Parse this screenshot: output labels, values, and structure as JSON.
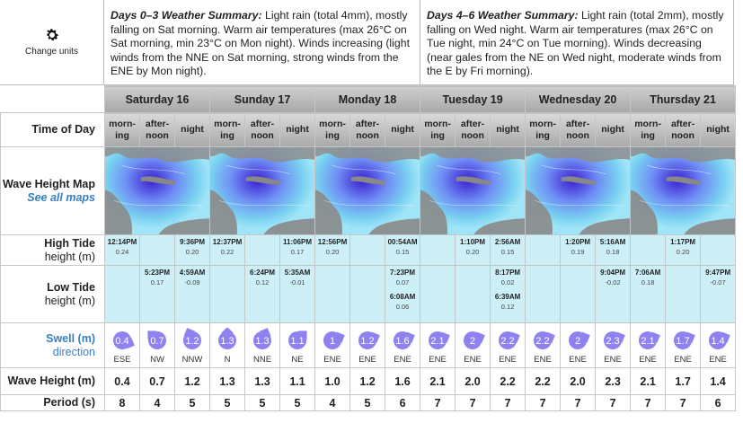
{
  "change_units": "Change units",
  "summaries": [
    {
      "title": "Days 0–3 Weather Summary:",
      "text": " Light rain (total 4mm), mostly falling on Sat morning. Warm air temperatures (max 26°C on Sat morning, min 23°C on Mon night). Winds increasing (light winds from the NNE on Sat morning, strong winds from the ENE by Mon night)."
    },
    {
      "title": "Days 4–6 Weather Summary:",
      "text": " Light rain (total 2mm), mostly falling on Wed night. Warm air temperatures (max 26°C on Tue night, min 24°C on Tue morning). Winds decreasing (near gales from the NE on Wed night, moderate winds from the E by Fri morning)."
    }
  ],
  "labels": {
    "time_of_day": "Time of Day",
    "wave_map": "Wave Height Map",
    "see_all_maps": "See all maps",
    "high_tide": "High Tide",
    "low_tide": "Low Tide",
    "height_m": "height (m)",
    "swell": "Swell (m)",
    "direction": "direction",
    "wave_height": "Wave Height (m)",
    "period": "Period (s)"
  },
  "days": [
    "Saturday 16",
    "Sunday 17",
    "Monday 18",
    "Tuesday 19",
    "Wednesday 20",
    "Thursday 21"
  ],
  "periods_of_day": [
    "morn- ing",
    "after- noon",
    "night"
  ],
  "high_tides": [
    [
      {
        "t": "12:14PM",
        "h": "0.24"
      }
    ],
    [],
    [
      {
        "t": "9:36PM",
        "h": "0.20"
      }
    ],
    [
      {
        "t": "12:37PM",
        "h": "0.22"
      }
    ],
    [],
    [
      {
        "t": "11:06PM",
        "h": "0.17"
      }
    ],
    [
      {
        "t": "12:56PM",
        "h": "0.20"
      }
    ],
    [],
    [
      {
        "t": "00:54AM",
        "h": "0.15"
      }
    ],
    [],
    [
      {
        "t": "1:10PM",
        "h": "0.20"
      }
    ],
    [
      {
        "t": "2:56AM",
        "h": "0.15"
      }
    ],
    [],
    [
      {
        "t": "1:20PM",
        "h": "0.19"
      }
    ],
    [
      {
        "t": "5:16AM",
        "h": "0.18"
      }
    ],
    [],
    [
      {
        "t": "1:17PM",
        "h": "0.20"
      }
    ],
    []
  ],
  "low_tides": [
    [],
    [
      {
        "t": "5:23PM",
        "h": "0.17"
      }
    ],
    [
      {
        "t": "4:59AM",
        "h": "-0.09"
      }
    ],
    [],
    [
      {
        "t": "6:24PM",
        "h": "0.12"
      }
    ],
    [
      {
        "t": "5:35AM",
        "h": "-0.01"
      }
    ],
    [],
    [],
    [
      {
        "t": "7:23PM",
        "h": "0.07"
      },
      {
        "t": "6:08AM",
        "h": "0.06"
      }
    ],
    [],
    [],
    [
      {
        "t": "8:17PM",
        "h": "0.02"
      },
      {
        "t": "6:39AM",
        "h": "0.12"
      }
    ],
    [],
    [],
    [
      {
        "t": "9:04PM",
        "h": "-0.02"
      }
    ],
    [
      {
        "t": "7:06AM",
        "h": "0.18"
      }
    ],
    [],
    [
      {
        "t": "9:47PM",
        "h": "-0.07"
      }
    ]
  ],
  "swell": [
    {
      "v": "0.4",
      "d": "ESE"
    },
    {
      "v": "0.7",
      "d": "NW"
    },
    {
      "v": "1.2",
      "d": "NNW"
    },
    {
      "v": "1.3",
      "d": "N"
    },
    {
      "v": "1.3",
      "d": "NNE"
    },
    {
      "v": "1.1",
      "d": "NE"
    },
    {
      "v": "1",
      "d": "ENE"
    },
    {
      "v": "1.2",
      "d": "ENE"
    },
    {
      "v": "1.6",
      "d": "ENE"
    },
    {
      "v": "2.1",
      "d": "ENE"
    },
    {
      "v": "2",
      "d": "ENE"
    },
    {
      "v": "2.2",
      "d": "ENE"
    },
    {
      "v": "2.2",
      "d": "ENE"
    },
    {
      "v": "2",
      "d": "ENE"
    },
    {
      "v": "2.3",
      "d": "ENE"
    },
    {
      "v": "2.1",
      "d": "ENE"
    },
    {
      "v": "1.7",
      "d": "ENE"
    },
    {
      "v": "1.4",
      "d": "ENE"
    }
  ],
  "wave_heights": [
    "0.4",
    "0.7",
    "1.2",
    "1.3",
    "1.3",
    "1.1",
    "1.0",
    "1.2",
    "1.6",
    "2.1",
    "2.0",
    "2.2",
    "2.2",
    "2.0",
    "2.3",
    "2.1",
    "1.7",
    "1.4"
  ],
  "periods": [
    "8",
    "4",
    "5",
    "5",
    "5",
    "5",
    "4",
    "5",
    "6",
    "7",
    "7",
    "7",
    "7",
    "7",
    "7",
    "7",
    "7",
    "6"
  ],
  "colors": {
    "tide_bg": "#cdf0f8",
    "swell_circle": "#8f82f0",
    "link": "#3a7ec2"
  }
}
